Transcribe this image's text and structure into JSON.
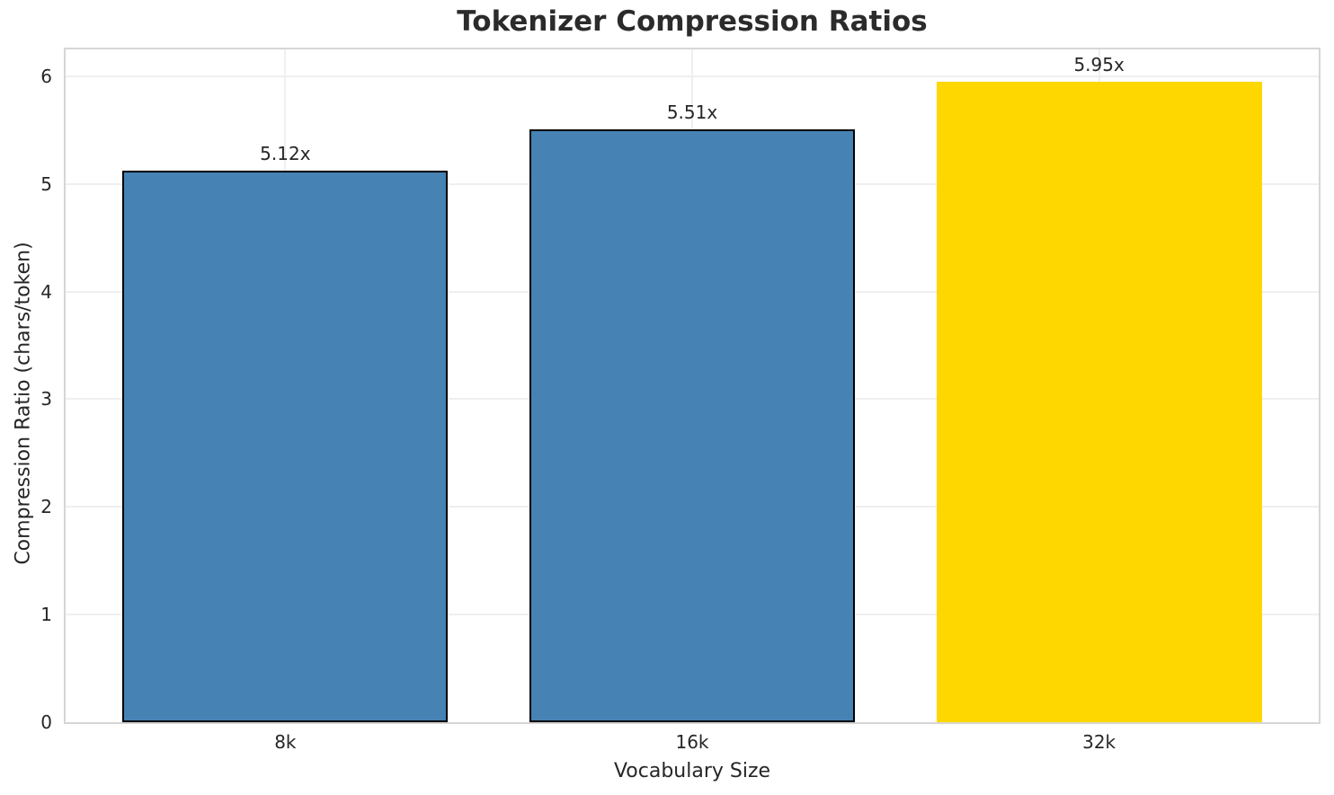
{
  "chart_data": {
    "type": "bar",
    "title": "Tokenizer Compression Ratios",
    "xlabel": "Vocabulary Size",
    "ylabel": "Compression Ratio (chars/token)",
    "categories": [
      "8k",
      "16k",
      "32k"
    ],
    "values": [
      5.12,
      5.51,
      5.95
    ],
    "bar_labels": [
      "5.12x",
      "5.51x",
      "5.95x"
    ],
    "bar_colors": [
      "#4682B4",
      "#4682B4",
      "#FFD700"
    ],
    "bar_edge_colors": [
      "#000000",
      "#000000",
      "none"
    ],
    "ytick_labels": [
      "0",
      "1",
      "2",
      "3",
      "4",
      "5",
      "6"
    ],
    "ytick_values": [
      0,
      1,
      2,
      3,
      4,
      5,
      6
    ],
    "ylim": [
      0,
      6.25
    ],
    "grid": "both",
    "grid_color": "#efefef",
    "spine_color": "#d6d6d6",
    "text_color": "#262626",
    "title_color": "#2b2b2b",
    "background_color": "#ffffff",
    "legend_position": "none"
  }
}
